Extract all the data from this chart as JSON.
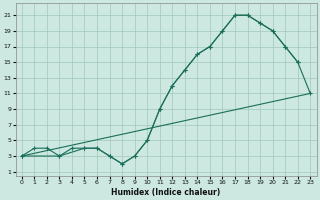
{
  "xlabel": "Humidex (Indice chaleur)",
  "bg_color": "#cce8e0",
  "grid_color": "#a0c8b8",
  "line_color": "#1a6e5a",
  "xlim": [
    -0.5,
    23.5
  ],
  "ylim": [
    0.5,
    22.5
  ],
  "xticks": [
    0,
    1,
    2,
    3,
    4,
    5,
    6,
    7,
    8,
    9,
    10,
    11,
    12,
    13,
    14,
    15,
    16,
    17,
    18,
    19,
    20,
    21,
    22,
    23
  ],
  "yticks": [
    1,
    3,
    5,
    7,
    9,
    11,
    13,
    15,
    17,
    19,
    21
  ],
  "line1_x": [
    0,
    1,
    2,
    3,
    4,
    5,
    6,
    7,
    8,
    9,
    10,
    11,
    12,
    13,
    14,
    15,
    16,
    17,
    18,
    19,
    20,
    21,
    22
  ],
  "line1_y": [
    3,
    4,
    4,
    3,
    4,
    4,
    4,
    3,
    2,
    3,
    5,
    9,
    12,
    14,
    16,
    17,
    19,
    21,
    21,
    20,
    19,
    17,
    15
  ],
  "line2_x": [
    0,
    3,
    5,
    6,
    7,
    8,
    9,
    10,
    11,
    12,
    13,
    14,
    15,
    16,
    17,
    18,
    19,
    20,
    21,
    22,
    23
  ],
  "line2_y": [
    3,
    3,
    4,
    4,
    3,
    2,
    3,
    5,
    9,
    12,
    14,
    16,
    17,
    19,
    21,
    21,
    20,
    19,
    17,
    15,
    11
  ],
  "line3_x": [
    0,
    23
  ],
  "line3_y": [
    3,
    11
  ]
}
